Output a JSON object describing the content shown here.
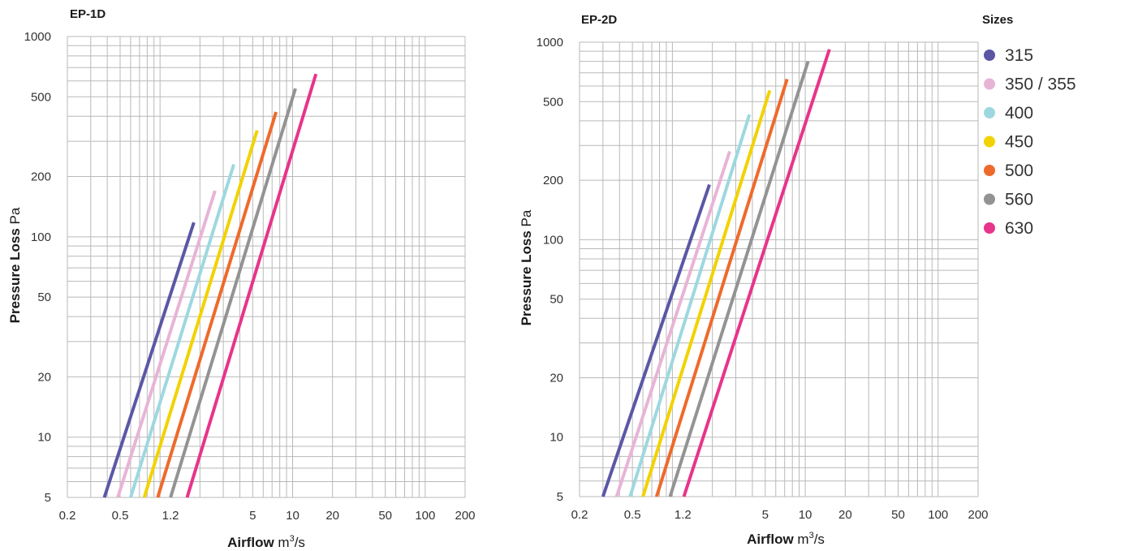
{
  "chart_data": [
    {
      "type": "line",
      "title": "EP-1D",
      "xlabel_bold": "Airflow",
      "xlabel_unit": "m",
      "xlabel_unit_sup": "3",
      "xlabel_unit_tail": "/s",
      "ylabel_bold": "Pressure Loss",
      "ylabel_unit": "Pa",
      "x_scale": "log",
      "y_scale": "log",
      "xlim": [
        0.2,
        200
      ],
      "ylim": [
        5,
        1000
      ],
      "grid": true,
      "x_ticks": [
        {
          "v": 0.2,
          "label": "0.2"
        },
        {
          "v": 0.5,
          "label": "0.5"
        },
        {
          "v": 1.2,
          "label": "1.2"
        },
        {
          "v": 5,
          "label": "5"
        },
        {
          "v": 10,
          "label": "10"
        },
        {
          "v": 20,
          "label": "20"
        },
        {
          "v": 50,
          "label": "50"
        },
        {
          "v": 100,
          "label": "100"
        },
        {
          "v": 200,
          "label": "200"
        }
      ],
      "y_ticks": [
        {
          "v": 5,
          "label": "5"
        },
        {
          "v": 10,
          "label": "10"
        },
        {
          "v": 20,
          "label": "20"
        },
        {
          "v": 50,
          "label": "50"
        },
        {
          "v": 100,
          "label": "100"
        },
        {
          "v": 200,
          "label": "200"
        },
        {
          "v": 500,
          "label": "500"
        },
        {
          "v": 1000,
          "label": "1000"
        }
      ],
      "series": [
        {
          "name": "315",
          "x": [
            0.38,
            1.8
          ],
          "y": [
            5,
            118
          ]
        },
        {
          "name": "350 / 355",
          "x": [
            0.48,
            2.6
          ],
          "y": [
            5,
            170
          ]
        },
        {
          "name": "400",
          "x": [
            0.6,
            3.6
          ],
          "y": [
            5,
            230
          ]
        },
        {
          "name": "450",
          "x": [
            0.76,
            5.4
          ],
          "y": [
            5,
            340
          ]
        },
        {
          "name": "500",
          "x": [
            0.96,
            7.5
          ],
          "y": [
            5,
            420
          ]
        },
        {
          "name": "560",
          "x": [
            1.2,
            10.5
          ],
          "y": [
            5,
            550
          ]
        },
        {
          "name": "630",
          "x": [
            1.6,
            15
          ],
          "y": [
            5,
            650
          ]
        }
      ]
    },
    {
      "type": "line",
      "title": "EP-2D",
      "xlabel_bold": "Airflow",
      "xlabel_unit": "m",
      "xlabel_unit_sup": "3",
      "xlabel_unit_tail": "/s",
      "ylabel_bold": "Pressure Loss",
      "ylabel_unit": "Pa",
      "x_scale": "log",
      "y_scale": "log",
      "xlim": [
        0.2,
        200
      ],
      "ylim": [
        5,
        1000
      ],
      "grid": true,
      "x_ticks": [
        {
          "v": 0.2,
          "label": "0.2"
        },
        {
          "v": 0.5,
          "label": "0.5"
        },
        {
          "v": 1.2,
          "label": "1.2"
        },
        {
          "v": 5,
          "label": "5"
        },
        {
          "v": 10,
          "label": "10"
        },
        {
          "v": 20,
          "label": "20"
        },
        {
          "v": 50,
          "label": "50"
        },
        {
          "v": 100,
          "label": "100"
        },
        {
          "v": 200,
          "label": "200"
        }
      ],
      "y_ticks": [
        {
          "v": 5,
          "label": "5"
        },
        {
          "v": 10,
          "label": "10"
        },
        {
          "v": 20,
          "label": "20"
        },
        {
          "v": 50,
          "label": "50"
        },
        {
          "v": 100,
          "label": "100"
        },
        {
          "v": 200,
          "label": "200"
        },
        {
          "v": 500,
          "label": "500"
        },
        {
          "v": 1000,
          "label": "1000"
        }
      ],
      "series": [
        {
          "name": "315",
          "x": [
            0.3,
            1.9
          ],
          "y": [
            5,
            190
          ]
        },
        {
          "name": "350 / 355",
          "x": [
            0.38,
            2.7
          ],
          "y": [
            5,
            280
          ]
        },
        {
          "name": "400",
          "x": [
            0.48,
            3.8
          ],
          "y": [
            5,
            430
          ]
        },
        {
          "name": "450",
          "x": [
            0.6,
            5.4
          ],
          "y": [
            5,
            570
          ]
        },
        {
          "name": "500",
          "x": [
            0.76,
            7.3
          ],
          "y": [
            5,
            650
          ]
        },
        {
          "name": "560",
          "x": [
            0.96,
            10.5
          ],
          "y": [
            5,
            800
          ]
        },
        {
          "name": "630",
          "x": [
            1.22,
            15.2
          ],
          "y": [
            5,
            920
          ]
        }
      ]
    }
  ],
  "legend": {
    "title": "Sizes",
    "placement": "right",
    "items": [
      {
        "label": "315",
        "color": "#5b57a6"
      },
      {
        "label": "350 / 355",
        "color": "#e8b4d6"
      },
      {
        "label": "400",
        "color": "#9dd8e0"
      },
      {
        "label": "450",
        "color": "#f2d200"
      },
      {
        "label": "500",
        "color": "#ee6a2c"
      },
      {
        "label": "560",
        "color": "#939393"
      },
      {
        "label": "630",
        "color": "#e8348b"
      }
    ]
  }
}
